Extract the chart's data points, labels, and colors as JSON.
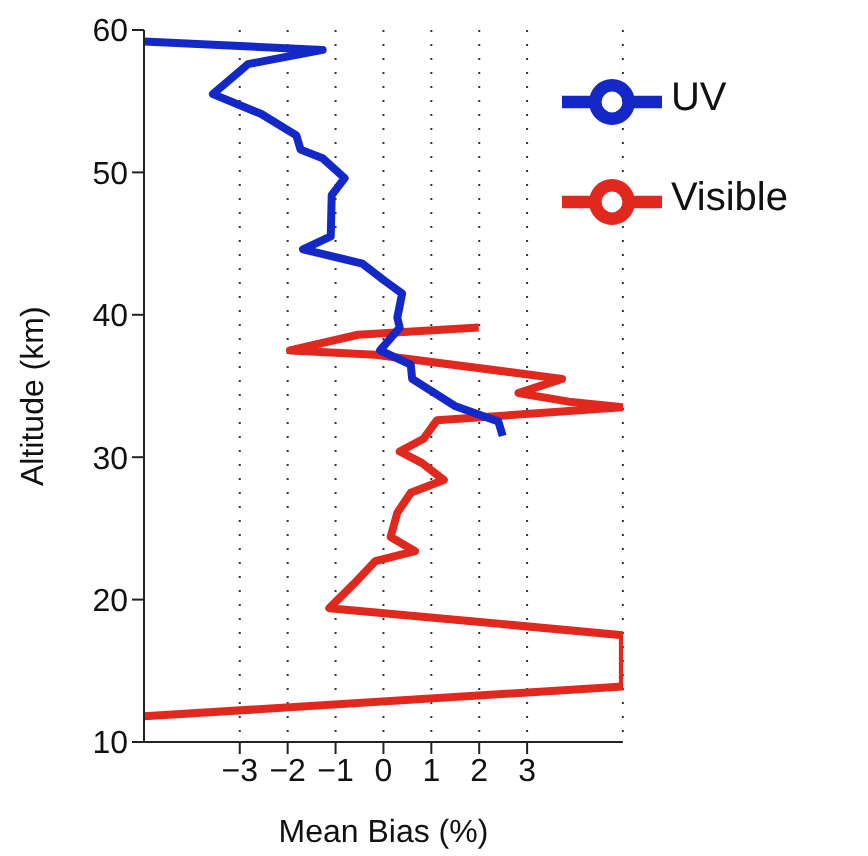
{
  "chart_data": {
    "type": "line",
    "xlabel": "Mean Bias (%)",
    "ylabel": "Altitude (km)",
    "xlim": [
      -5,
      5
    ],
    "xticks": [
      -3,
      -2,
      -1,
      0,
      1,
      2,
      3
    ],
    "ylim": [
      10,
      60
    ],
    "yticks": [
      10,
      20,
      30,
      40,
      50,
      60
    ],
    "grid": "x",
    "legend": "top right",
    "line_style": "solid",
    "marker": "none",
    "series": [
      {
        "name": "Visible",
        "color": "#e0281e",
        "x": [
          1.99,
          -0.53,
          -1.95,
          -0.17,
          3.73,
          2.82,
          3.87,
          5,
          1.12,
          0.84,
          0.34,
          0.8,
          1.26,
          0.57,
          0.29,
          0.15,
          0.66,
          -0.17,
          -0.62,
          -1.13,
          5,
          5,
          -5
        ],
        "values": [
          39.1,
          38.6,
          37.5,
          37.2,
          35.5,
          34.5,
          33.9,
          33.5,
          32.6,
          31.3,
          30.4,
          29.6,
          28.4,
          27.5,
          26.1,
          24.4,
          23.4,
          22.7,
          21.1,
          19.4,
          17.5,
          13.9,
          11.8
        ]
      },
      {
        "name": "UV",
        "color": "#1428c8",
        "x": [
          -5,
          -1.27,
          -2.83,
          -3.56,
          -2.55,
          -1.82,
          -1.73,
          -1.27,
          -0.81,
          -1.08,
          -1.1,
          -1.68,
          -0.44,
          0.02,
          0.39,
          0.29,
          0.34,
          -0.07,
          0.57,
          0.6,
          1.49,
          2.4,
          2.49
        ],
        "values": [
          59.2,
          58.6,
          57.6,
          55.5,
          54.1,
          52.6,
          51.6,
          51.0,
          49.6,
          48.4,
          45.5,
          44.6,
          43.6,
          42.4,
          41.5,
          39.8,
          39.1,
          37.5,
          36.5,
          35.5,
          33.6,
          32.5,
          31.5
        ]
      }
    ]
  }
}
